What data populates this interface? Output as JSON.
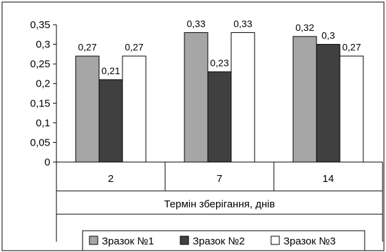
{
  "chart_data": {
    "type": "bar",
    "categories": [
      "2",
      "7",
      "14"
    ],
    "xlabel": "Термін зберігання, днів",
    "ylabel": "",
    "ylim": [
      0,
      0.35
    ],
    "yticks": [
      "0",
      "0,05",
      "0,1",
      "0,15",
      "0,2",
      "0,25",
      "0,3",
      "0,35"
    ],
    "grid": false,
    "legend_position": "bottom",
    "series": [
      {
        "name": "Зразок №1",
        "color": "#a6a6a6",
        "values": [
          0.27,
          0.33,
          0.32
        ],
        "labels": [
          "0,27",
          "0,33",
          "0,32"
        ]
      },
      {
        "name": "Зразок №2",
        "color": "#404040",
        "values": [
          0.21,
          0.23,
          0.3
        ],
        "labels": [
          "0,21",
          "0,23",
          "0,3"
        ]
      },
      {
        "name": "Зразок №3",
        "color": "#ffffff",
        "values": [
          0.27,
          0.33,
          0.27
        ],
        "labels": [
          "0,27",
          "0,33",
          "0,27"
        ]
      }
    ]
  }
}
